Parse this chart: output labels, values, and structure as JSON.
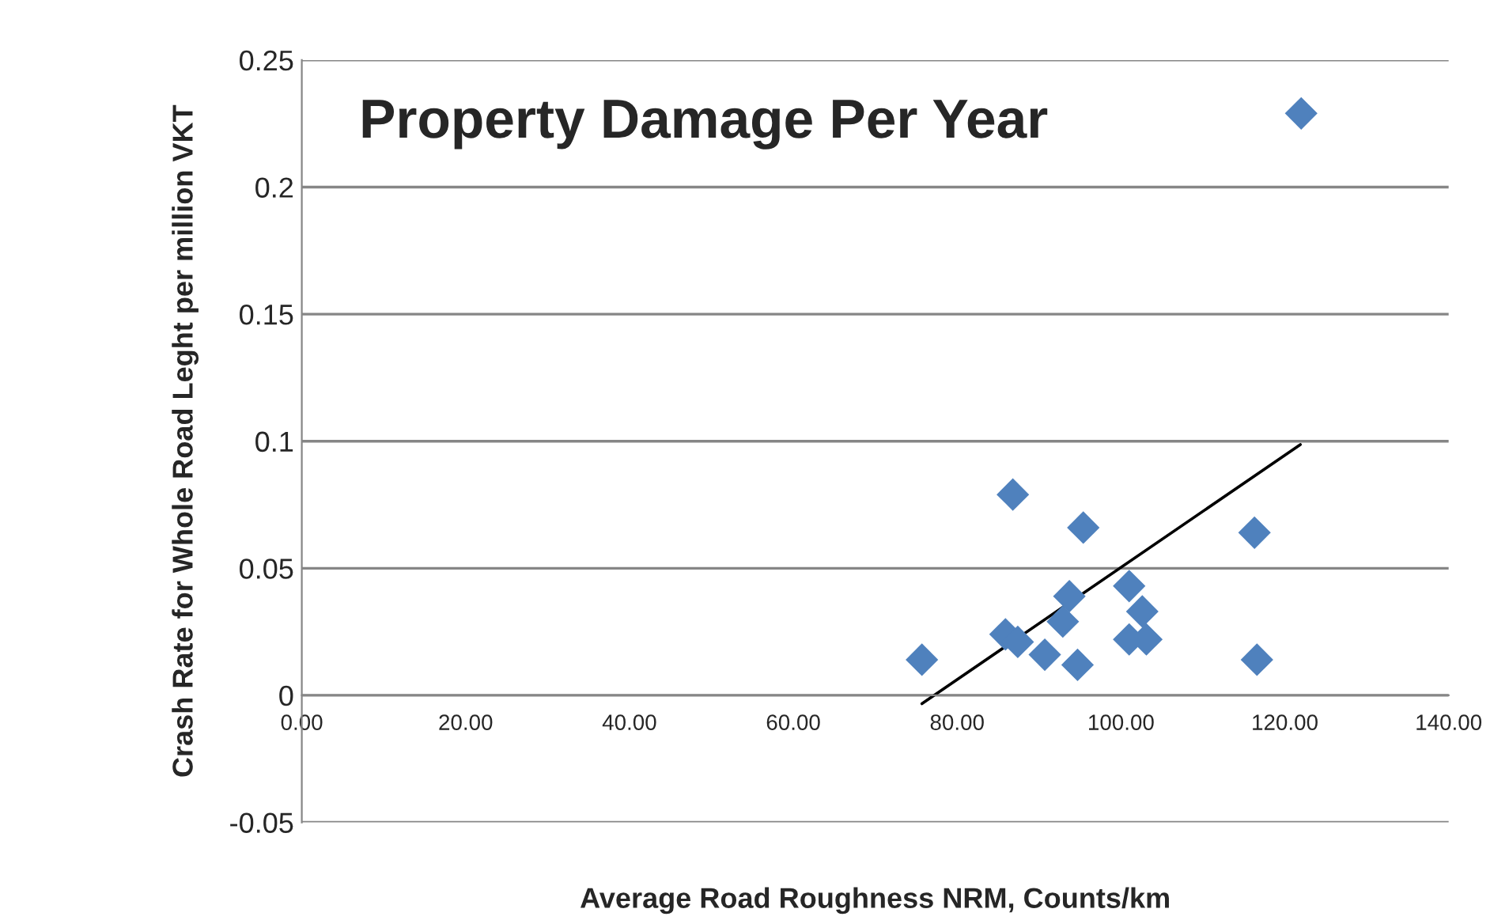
{
  "chart_data": {
    "type": "scatter",
    "title": "Property Damage Per Year",
    "xlabel": "Average Road Roughness NRM, Counts/km",
    "ylabel": "Crash Rate for Whole Road Leght per million VKT",
    "series": [
      {
        "color": "#4f81bd",
        "marker": "diamond",
        "x": [
          75.7,
          86.8,
          95.4,
          116.3,
          101.0,
          93.7,
          102.6,
          92.9,
          85.9,
          87.4,
          101.0,
          103.1,
          90.7,
          94.7,
          116.6,
          122.0
        ],
        "values": [
          0.014,
          0.079,
          0.066,
          0.064,
          0.043,
          0.039,
          0.033,
          0.029,
          0.024,
          0.021,
          0.022,
          0.022,
          0.016,
          0.012,
          0.014,
          0.229
        ]
      },
      {
        "type": "line",
        "color": "#000000",
        "marker": "none",
        "line_style": "solid",
        "x": [
          75.7,
          121.9
        ],
        "values": [
          -0.0033,
          0.0987
        ]
      }
    ],
    "xlim": [
      0,
      140
    ],
    "xticks": [
      {
        "value": 0,
        "label": "0.00"
      },
      {
        "value": 20,
        "label": "20.00"
      },
      {
        "value": 40,
        "label": "40.00"
      },
      {
        "value": 60,
        "label": "60.00"
      },
      {
        "value": 80,
        "label": "80.00"
      },
      {
        "value": 100,
        "label": "100.00"
      },
      {
        "value": 120,
        "label": "120.00"
      },
      {
        "value": 140,
        "label": "140.00"
      }
    ],
    "ylim": [
      -0.05,
      0.25
    ],
    "yticks": [
      {
        "value": -0.05,
        "label": "-0.05"
      },
      0,
      0.05,
      0.1,
      0.15,
      0.2,
      0.25
    ],
    "grid": "y"
  }
}
